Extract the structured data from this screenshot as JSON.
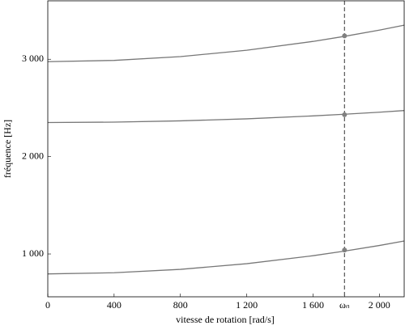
{
  "chart_data": {
    "type": "line",
    "xlabel": "vitesse de rotation [rad/s]",
    "ylabel": "fréquence [Hz]",
    "x": [
      0,
      400,
      800,
      1200,
      1600,
      1790,
      2000,
      2150
    ],
    "series": [
      {
        "color": "#777777",
        "values": [
          795,
          807,
          842,
          900,
          982,
          1029,
          1087,
          1133
        ]
      },
      {
        "color": "#777777",
        "values": [
          2350,
          2354,
          2367,
          2388,
          2418,
          2435,
          2456,
          2473
        ]
      },
      {
        "color": "#777777",
        "values": [
          2975,
          2988,
          3027,
          3092,
          3183,
          3235,
          3299,
          3350
        ]
      }
    ],
    "marker_x": 1790,
    "markers": [
      1040,
      2430,
      3240
    ],
    "marker_color": "#808080",
    "xlim": [
      0,
      2150
    ],
    "ylim": [
      560,
      3600
    ],
    "xticks": [
      0,
      400,
      800,
      {
        "value": 1200,
        "label": "1 200"
      },
      {
        "value": 1600,
        "label": "1 600"
      },
      {
        "value": 1790,
        "label": "ωₙ"
      },
      {
        "value": 2000,
        "label": "2 000"
      }
    ],
    "yticks": [
      {
        "value": 1000,
        "label": "1 000"
      },
      {
        "value": 2000,
        "label": "2 000"
      },
      {
        "value": 3000,
        "label": "3 000"
      }
    ]
  }
}
